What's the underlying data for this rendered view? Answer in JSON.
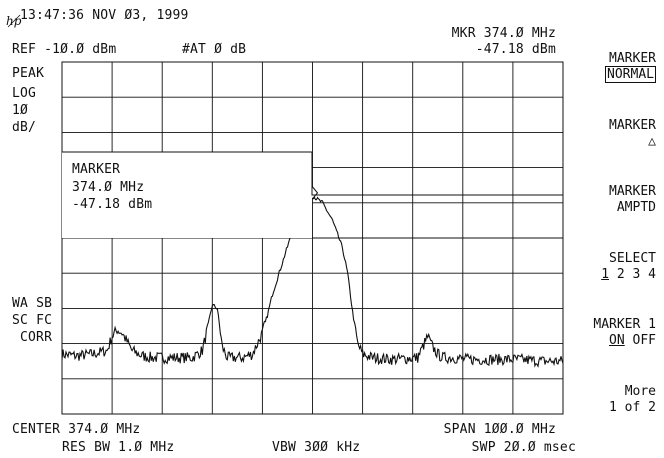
{
  "header": {
    "timestamp": "13:47:36 NOV Ø3, 1999",
    "logo_text": "hp",
    "marker_readout_freq": "MKR 374.Ø MHz",
    "marker_readout_amp": "-47.18 dBm",
    "ref_level": "REF -1Ø.Ø dBm",
    "attenuation": "#AT Ø dB"
  },
  "left_annotations": {
    "detector": "PEAK",
    "scale_mode": "LOG",
    "scale_value": "1Ø",
    "scale_unit": "dB/",
    "wa_sb": "WA SB",
    "sc_fc": "SC FC",
    "corr": "CORR"
  },
  "marker_box": {
    "title": "MARKER",
    "freq": "374.Ø MHz",
    "amp": "-47.18 dBm"
  },
  "softkeys": [
    {
      "line1": "MARKER",
      "line2": "NORMAL",
      "boxed": true
    },
    {
      "line1": "MARKER",
      "line2": "△",
      "boxed": false
    },
    {
      "line1": "MARKER",
      "line2": "AMPTD",
      "boxed": false
    },
    {
      "line1": "SELECT",
      "line2_sel": "1",
      "line2_rest": " 2 3 4"
    },
    {
      "line1": "MARKER 1",
      "line2_sel": "ON",
      "line2_rest": " OFF"
    },
    {
      "line1": "More",
      "line2": "1 of 2",
      "boxed": false
    }
  ],
  "footer": {
    "center": "CENTER 374.Ø MHz",
    "span": "SPAN 1ØØ.Ø MHz",
    "rbw": "RES BW 1.Ø MHz",
    "vbw": "VBW 3ØØ kHz",
    "sweep": "SWP 2Ø.Ø msec"
  },
  "chart_data": {
    "type": "line",
    "x_range_mhz": [
      324,
      424
    ],
    "y_range_dbm": [
      -110,
      -10
    ],
    "y_scale": "log 10 dB/div",
    "series": [
      {
        "x": [
          324,
          327,
          330,
          333,
          334,
          335,
          336,
          338,
          340,
          342,
          344,
          346,
          350,
          352,
          353,
          354,
          355,
          356,
          357,
          360,
          362,
          364,
          365,
          366,
          368,
          370,
          372,
          374,
          376,
          378,
          380,
          381,
          382,
          383,
          384,
          386,
          390,
          395,
          397,
          398,
          399,
          400,
          402,
          405,
          410,
          415,
          420,
          424
        ],
        "y": [
          -93,
          -93.5,
          -93,
          -92,
          -88,
          -86,
          -87,
          -92,
          -93.5,
          -94,
          -94,
          -94,
          -94,
          -92,
          -86,
          -79,
          -80,
          -91,
          -94,
          -94,
          -93,
          -87,
          -82,
          -76,
          -67,
          -58,
          -52,
          -48,
          -50,
          -55,
          -63,
          -70,
          -81,
          -90,
          -93,
          -94,
          -94.5,
          -94,
          -88,
          -91,
          -93,
          -94,
          -94,
          -94.5,
          -94.5,
          -94.5,
          -95,
          -95
        ]
      }
    ],
    "marker": {
      "x": 374,
      "y": -47.18
    }
  }
}
